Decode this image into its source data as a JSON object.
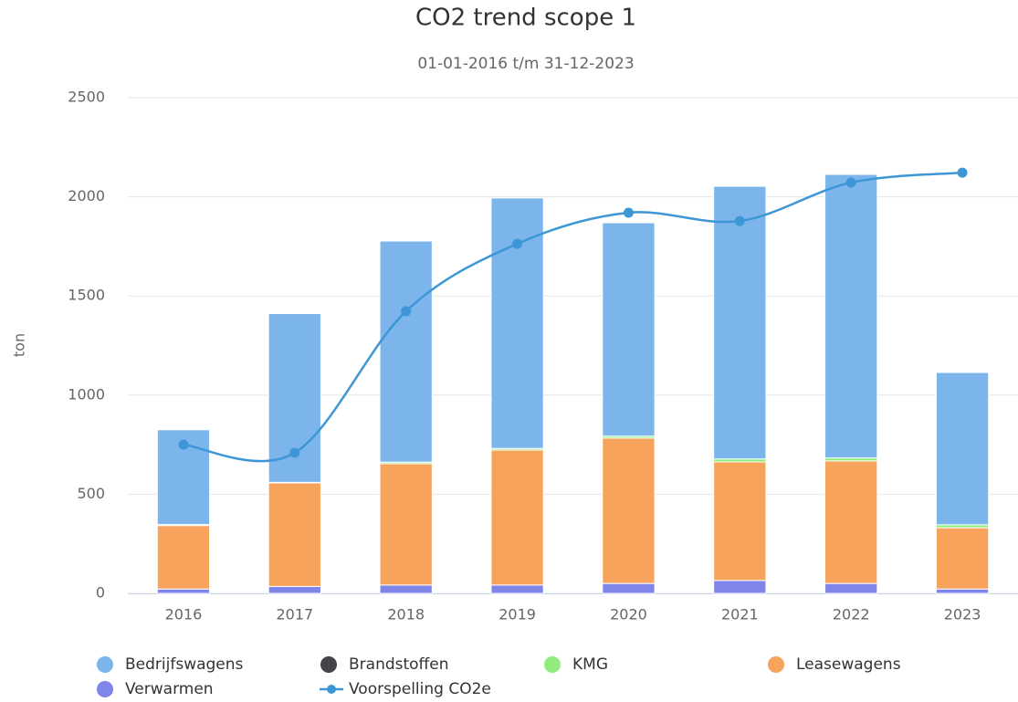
{
  "chart_data": {
    "type": "bar",
    "stacked": true,
    "title": "CO2 trend scope 1",
    "subtitle": "01-01-2016 t/m 31-12-2023",
    "y_label": "ton",
    "categories": [
      "2016",
      "2017",
      "2018",
      "2019",
      "2020",
      "2021",
      "2022",
      "2023"
    ],
    "series": [
      {
        "name": "Bedrijfswagens",
        "color": "#7cb5ec",
        "values": [
          478,
          851,
          1115,
          1263,
          1076,
          1375,
          1430,
          768
        ]
      },
      {
        "name": "Brandstoffen",
        "color": "#434348",
        "values": [
          0,
          0,
          0,
          0,
          0,
          0,
          0,
          0
        ]
      },
      {
        "name": "KMG",
        "color": "#90ed7d",
        "values": [
          5,
          3,
          8,
          8,
          10,
          15,
          15,
          15
        ]
      },
      {
        "name": "Leasewagens",
        "color": "#f7a35c",
        "values": [
          320,
          522,
          612,
          681,
          733,
          598,
          618,
          309
        ]
      },
      {
        "name": "Verwarmen",
        "color": "#8085e9",
        "values": [
          22,
          35,
          42,
          42,
          50,
          65,
          50,
          22
        ]
      },
      {
        "name": "Voorspelling CO2e",
        "color": "#3d96d5",
        "type": "line",
        "values": [
          750,
          709,
          1423,
          1763,
          1920,
          1878,
          2072,
          2122
        ]
      }
    ],
    "ylim": [
      0,
      2500
    ],
    "yticks": [
      0,
      500,
      1000,
      1500,
      2000,
      2500
    ],
    "grid": true,
    "legend": "bottom"
  }
}
